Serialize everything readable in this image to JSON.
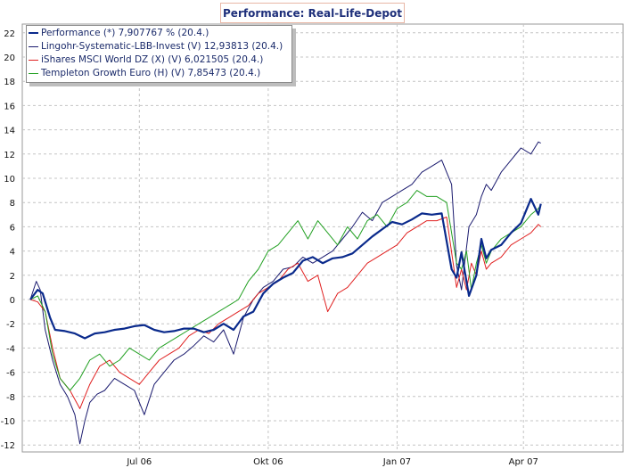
{
  "chart_data": {
    "type": "line",
    "title": "Performance: Real-Life-Depot",
    "xlabel": "",
    "ylabel": "",
    "ylim": [
      -12.9,
      23
    ],
    "yticks": [
      22,
      20,
      18,
      16,
      14,
      12,
      10,
      8,
      6,
      4,
      2,
      0,
      -2,
      -4,
      -6,
      -8,
      -10,
      -12
    ],
    "xticks": [
      {
        "label": "Jul 06",
        "x": 0.22
      },
      {
        "label": "Okt 06",
        "x": 0.48
      },
      {
        "label": "Jan 07",
        "x": 0.74
      },
      {
        "label": "Apr 07",
        "x": 0.995
      }
    ],
    "xlim": [
      -0.02,
      1.19
    ],
    "grid": true,
    "legend_position": "top-left",
    "colors": {
      "performance": "#0a2a8c",
      "lingohr": "#1a1a6e",
      "ishares": "#e02020",
      "templeton": "#22a022",
      "title_border": "#e8b7a6",
      "title_text": "#1e2f7a"
    },
    "series": [
      {
        "name": "Performance (*) 7,907767 % (20.4.)",
        "key": "performance",
        "width": 2.2,
        "x": [
          0,
          0.015,
          0.025,
          0.04,
          0.05,
          0.07,
          0.09,
          0.11,
          0.13,
          0.15,
          0.17,
          0.19,
          0.21,
          0.23,
          0.25,
          0.27,
          0.29,
          0.31,
          0.33,
          0.35,
          0.37,
          0.39,
          0.41,
          0.43,
          0.45,
          0.47,
          0.49,
          0.51,
          0.53,
          0.55,
          0.57,
          0.59,
          0.61,
          0.63,
          0.65,
          0.67,
          0.69,
          0.71,
          0.73,
          0.75,
          0.77,
          0.79,
          0.81,
          0.83,
          0.85,
          0.86,
          0.87,
          0.885,
          0.9,
          0.91,
          0.92,
          0.93,
          0.95,
          0.97,
          0.99,
          1.01,
          1.025,
          1.03
        ],
        "y": [
          0,
          0.8,
          0.5,
          -1.5,
          -2.5,
          -2.6,
          -2.8,
          -3.2,
          -2.8,
          -2.7,
          -2.5,
          -2.4,
          -2.2,
          -2.1,
          -2.5,
          -2.7,
          -2.6,
          -2.4,
          -2.4,
          -2.7,
          -2.5,
          -2.0,
          -2.5,
          -1.4,
          -1.0,
          0.5,
          1.3,
          1.8,
          2.2,
          3.2,
          3.5,
          3.0,
          3.4,
          3.5,
          3.8,
          4.5,
          5.2,
          5.8,
          6.4,
          6.2,
          6.6,
          7.1,
          7.0,
          7.1,
          2.5,
          1.8,
          3.9,
          0.3,
          2.0,
          5.0,
          3.4,
          4.1,
          4.5,
          5.5,
          6.3,
          8.3,
          7.0,
          7.9
        ]
      },
      {
        "name": "Lingohr-Systematic-LBB-Invest (V) 12,93813 (20.4.)",
        "key": "lingohr",
        "width": 1,
        "x": [
          0,
          0.012,
          0.02,
          0.03,
          0.045,
          0.06,
          0.075,
          0.09,
          0.1,
          0.11,
          0.12,
          0.135,
          0.15,
          0.17,
          0.19,
          0.21,
          0.23,
          0.25,
          0.27,
          0.29,
          0.31,
          0.33,
          0.35,
          0.37,
          0.39,
          0.41,
          0.43,
          0.45,
          0.47,
          0.49,
          0.51,
          0.53,
          0.55,
          0.57,
          0.59,
          0.61,
          0.63,
          0.65,
          0.67,
          0.69,
          0.71,
          0.73,
          0.75,
          0.77,
          0.79,
          0.81,
          0.83,
          0.84,
          0.85,
          0.86,
          0.87,
          0.885,
          0.9,
          0.91,
          0.92,
          0.93,
          0.95,
          0.97,
          0.99,
          1.01,
          1.025,
          1.03
        ],
        "y": [
          0,
          1.5,
          0.8,
          -2.5,
          -5.0,
          -7.0,
          -8.0,
          -9.5,
          -11.9,
          -10.0,
          -8.5,
          -7.8,
          -7.5,
          -6.5,
          -7.0,
          -7.5,
          -9.5,
          -7.0,
          -6.0,
          -5.0,
          -4.5,
          -3.8,
          -3.0,
          -3.5,
          -2.5,
          -4.5,
          -1.5,
          0.0,
          1.0,
          1.5,
          2.5,
          2.7,
          3.5,
          3.0,
          3.5,
          4.0,
          5.0,
          6.0,
          7.2,
          6.5,
          8.0,
          8.5,
          9.0,
          9.5,
          10.5,
          11.0,
          11.5,
          10.5,
          9.5,
          2.8,
          0.8,
          6.0,
          7.0,
          8.5,
          9.5,
          9.0,
          10.5,
          11.5,
          12.5,
          12.0,
          13.0,
          12.9
        ]
      },
      {
        "name": "iShares MSCI World DZ (X) (V) 6,021505 (20.4.)",
        "key": "ishares",
        "width": 1,
        "x": [
          0,
          0.015,
          0.03,
          0.045,
          0.06,
          0.08,
          0.1,
          0.12,
          0.14,
          0.16,
          0.18,
          0.2,
          0.22,
          0.24,
          0.26,
          0.28,
          0.3,
          0.32,
          0.34,
          0.36,
          0.38,
          0.4,
          0.42,
          0.44,
          0.46,
          0.48,
          0.5,
          0.52,
          0.54,
          0.56,
          0.58,
          0.6,
          0.62,
          0.64,
          0.66,
          0.68,
          0.7,
          0.72,
          0.74,
          0.76,
          0.78,
          0.8,
          0.82,
          0.84,
          0.86,
          0.87,
          0.88,
          0.89,
          0.9,
          0.91,
          0.92,
          0.93,
          0.95,
          0.97,
          0.99,
          1.01,
          1.025,
          1.03
        ],
        "y": [
          0,
          -0.2,
          -1.0,
          -4.0,
          -6.5,
          -7.5,
          -9.0,
          -7.0,
          -5.5,
          -5.0,
          -6.0,
          -6.5,
          -7.0,
          -6.0,
          -5.0,
          -4.5,
          -4.0,
          -3.0,
          -2.5,
          -2.8,
          -2.0,
          -1.5,
          -1.0,
          -0.5,
          0.5,
          1.0,
          1.5,
          2.5,
          3.0,
          1.5,
          2.0,
          -1.0,
          0.5,
          1.0,
          2.0,
          3.0,
          3.5,
          4.0,
          4.5,
          5.5,
          6.0,
          6.5,
          6.5,
          6.8,
          1.0,
          2.5,
          0.8,
          3.0,
          2.0,
          4.0,
          2.5,
          3.0,
          3.5,
          4.5,
          5.0,
          5.5,
          6.2,
          6.0
        ]
      },
      {
        "name": "Templeton Growth Euro (H) (V) 7,85473 (20.4.)",
        "key": "templeton",
        "width": 1,
        "x": [
          0,
          0.015,
          0.03,
          0.045,
          0.06,
          0.08,
          0.1,
          0.12,
          0.14,
          0.16,
          0.18,
          0.2,
          0.22,
          0.24,
          0.26,
          0.28,
          0.3,
          0.32,
          0.34,
          0.36,
          0.38,
          0.4,
          0.42,
          0.44,
          0.46,
          0.48,
          0.5,
          0.52,
          0.54,
          0.56,
          0.58,
          0.6,
          0.62,
          0.64,
          0.66,
          0.68,
          0.7,
          0.72,
          0.74,
          0.76,
          0.78,
          0.8,
          0.82,
          0.84,
          0.86,
          0.87,
          0.88,
          0.89,
          0.9,
          0.91,
          0.92,
          0.93,
          0.95,
          0.97,
          0.99,
          1.01,
          1.025,
          1.03
        ],
        "y": [
          0,
          0.3,
          -1.0,
          -4.5,
          -6.5,
          -7.5,
          -6.5,
          -5.0,
          -4.5,
          -5.5,
          -5.0,
          -4.0,
          -4.5,
          -5.0,
          -4.0,
          -3.5,
          -3.0,
          -2.5,
          -2.0,
          -1.5,
          -1.0,
          -0.5,
          0.0,
          1.5,
          2.5,
          4.0,
          4.5,
          5.5,
          6.5,
          5.0,
          6.5,
          5.5,
          4.5,
          6.0,
          5.0,
          6.5,
          7.0,
          6.0,
          7.5,
          8.0,
          9.0,
          8.5,
          8.5,
          8.0,
          3.0,
          2.5,
          4.0,
          0.8,
          3.0,
          4.5,
          3.0,
          4.0,
          5.0,
          5.5,
          6.0,
          7.0,
          7.5,
          7.8
        ]
      }
    ]
  }
}
